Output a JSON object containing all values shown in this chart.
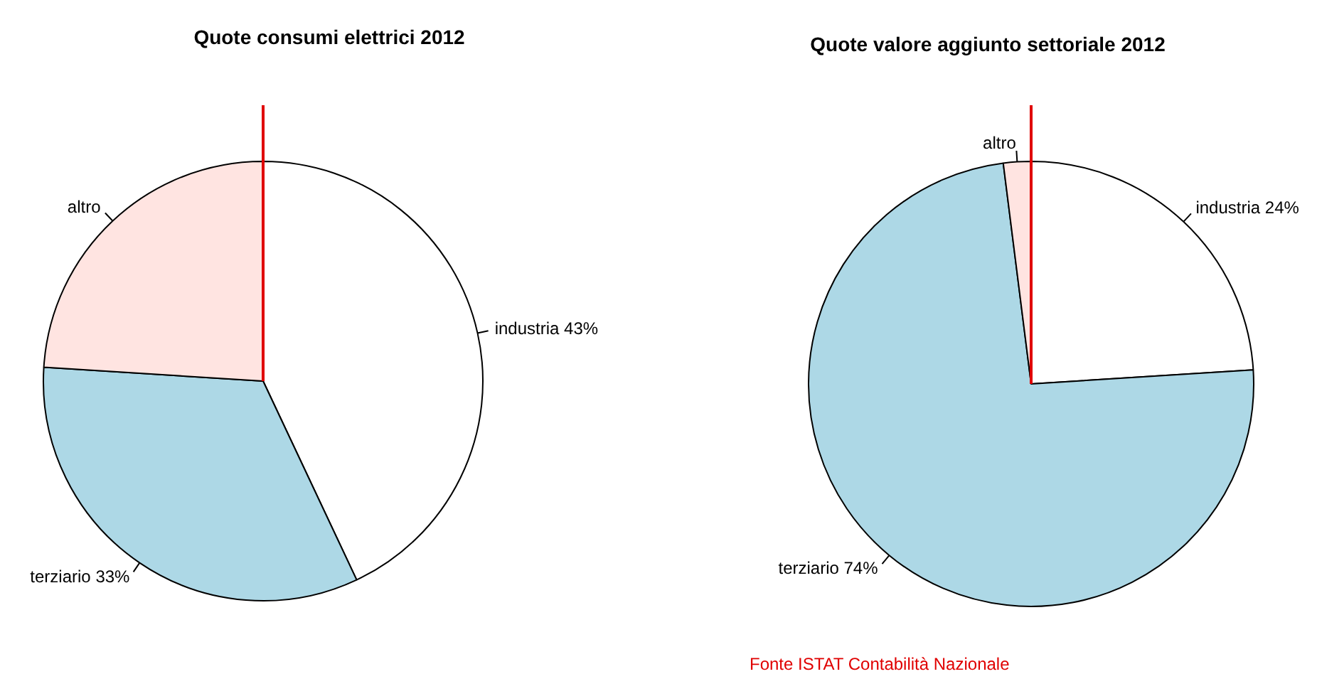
{
  "chart_data": [
    {
      "type": "pie",
      "title": "Quote consumi elettrici 2012",
      "categories": [
        "industria",
        "terziario",
        "altro"
      ],
      "values": [
        43,
        33,
        24
      ],
      "value_labels": [
        "43%",
        "33%",
        null
      ],
      "colors": [
        "#ffffff",
        "#add8e6",
        "#ffe4e1"
      ],
      "legend": false
    },
    {
      "type": "pie",
      "title": "Quote valore aggiunto settoriale 2012",
      "categories": [
        "industria",
        "terziario",
        "altro"
      ],
      "values": [
        24,
        74,
        2
      ],
      "value_labels": [
        "24%",
        "74%",
        null
      ],
      "colors": [
        "#ffffff",
        "#add8e6",
        "#ffe4e1"
      ],
      "legend": false,
      "annotations": [
        "Fonte ISTAT Contabilità Nazionale"
      ]
    }
  ]
}
